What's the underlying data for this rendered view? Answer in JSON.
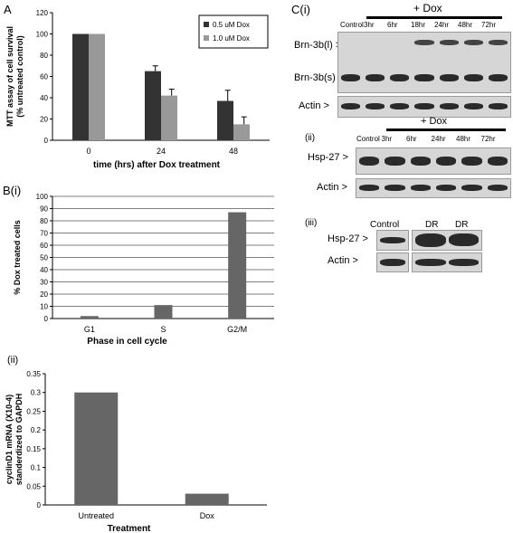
{
  "panelA": {
    "label": "A",
    "chart_data": {
      "type": "bar",
      "categories": [
        "0",
        "24",
        "48"
      ],
      "series": [
        {
          "name": "0.5 uM Dox",
          "values": [
            100,
            65,
            37
          ],
          "errors": [
            0,
            5,
            10
          ],
          "color": "#333333"
        },
        {
          "name": "1.0 uM Dox",
          "values": [
            100,
            42,
            15
          ],
          "errors": [
            0,
            6,
            7
          ],
          "color": "#999999"
        }
      ],
      "xlabel": "time (hrs) after Dox treatment",
      "ylabel": "MTT assay of cell survival (% untreated control)",
      "ylim": [
        0,
        120
      ],
      "yticks": [
        0,
        20,
        40,
        60,
        80,
        100,
        120
      ],
      "legend": "top-right",
      "grid": false
    }
  },
  "panelBi": {
    "label": "B(i)",
    "chart_data": {
      "type": "bar",
      "categories": [
        "G1",
        "S",
        "G2/M"
      ],
      "values": [
        2,
        11,
        87
      ],
      "xlabel": "Phase in cell cycle",
      "ylabel": "% Dox treated cells",
      "ylim": [
        0,
        100
      ],
      "yticks": [
        0,
        10,
        20,
        30,
        40,
        50,
        60,
        70,
        80,
        90,
        100
      ],
      "grid": true,
      "color": "#666666"
    }
  },
  "panelBii": {
    "label": "(ii)",
    "chart_data": {
      "type": "bar",
      "categories": [
        "Untreated",
        "Dox"
      ],
      "values": [
        0.3,
        0.03
      ],
      "xlabel": "Treatment",
      "ylabel": "cyclinD1 mRNA (X10-4) standerdized to GAPDH",
      "ylim": [
        0,
        0.35
      ],
      "yticks": [
        "0",
        "0.05",
        "0.1",
        "0.15",
        "0.2",
        "0.25",
        "0.3",
        "0.35"
      ],
      "grid": false,
      "color": "#666666"
    }
  },
  "panelCi": {
    "label": "C(i)",
    "treatment": "+ Dox",
    "lanes": [
      "Control",
      "3hr",
      "6hr",
      "18hr",
      "24hr",
      "48hr",
      "72hr"
    ],
    "rows": [
      "Brn-3b(l) >",
      "Brn-3b(s) >",
      "Actin >"
    ]
  },
  "panelCii": {
    "label": "(ii)",
    "treatment": "+ Dox",
    "lanes": [
      "Control",
      "3hr",
      "6hr",
      "24hr",
      "48hr",
      "72hr"
    ],
    "rows": [
      "Hsp-27 >",
      "Actin >"
    ]
  },
  "panelCiii": {
    "label": "(iii)",
    "lanes": [
      "Control",
      "DR",
      "DR"
    ],
    "rows": [
      "Hsp-27 >",
      "Actin >"
    ]
  }
}
